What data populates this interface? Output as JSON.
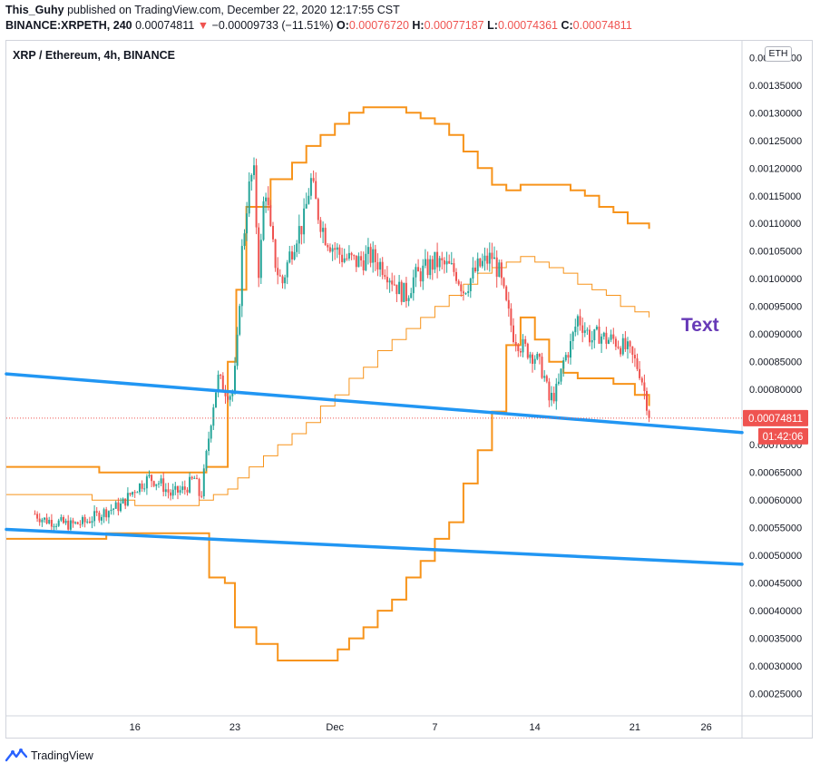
{
  "header": {
    "publisher": "This_Guhy",
    "published_text": "published on TradingView.com, December 22, 2020 12:17:55 CST",
    "symbol": "BINANCE:XRPETH, 240",
    "last_price": "0.00074811",
    "change": "−0.00009733 (−11.51%)",
    "o_label": "O:",
    "o_value": "0.00076720",
    "h_label": "H:",
    "h_value": "0.00077187",
    "l_label": "L:",
    "l_value": "0.00074361",
    "c_label": "C:",
    "c_value": "0.00074811"
  },
  "plot_title": "XRP / Ethereum, 4h, BINANCE",
  "currency_badge": "ETH",
  "annotation_text": "Text",
  "price_label": "0.00074811",
  "countdown_label": "01:42:06",
  "footer_brand": "TradingView",
  "colors": {
    "up": "#26a69a",
    "down": "#ef5350",
    "orange": "#f7931a",
    "blue": "#2196f3",
    "annotation": "#673ab7"
  },
  "chart_data": {
    "type": "candlestick",
    "title": "XRP / Ethereum, 4h, BINANCE",
    "x_ticks": [
      {
        "label": "16",
        "day": 16
      },
      {
        "label": "23",
        "day": 23
      },
      {
        "label": "Dec",
        "day": 30
      },
      {
        "label": "7",
        "day": 37
      },
      {
        "label": "14",
        "day": 44
      },
      {
        "label": "21",
        "day": 51
      },
      {
        "label": "26",
        "day": 56
      }
    ],
    "y_ticks": [
      {
        "label": "0.00025000",
        "value": 0.00025
      },
      {
        "label": "0.00030000",
        "value": 0.0003
      },
      {
        "label": "0.00035000",
        "value": 0.00035
      },
      {
        "label": "0.00040000",
        "value": 0.0004
      },
      {
        "label": "0.00045000",
        "value": 0.00045
      },
      {
        "label": "0.00050000",
        "value": 0.0005
      },
      {
        "label": "0.00055000",
        "value": 0.00055
      },
      {
        "label": "0.00060000",
        "value": 0.0006
      },
      {
        "label": "0.00065000",
        "value": 0.00065
      },
      {
        "label": "0.00070000",
        "value": 0.0007
      },
      {
        "label": "0.00075000",
        "value": 0.00075
      },
      {
        "label": "0.00080000",
        "value": 0.0008
      },
      {
        "label": "0.00085000",
        "value": 0.00085
      },
      {
        "label": "0.00090000",
        "value": 0.0009
      },
      {
        "label": "0.00095000",
        "value": 0.00095
      },
      {
        "label": "0.00100000",
        "value": 0.001
      },
      {
        "label": "0.00105000",
        "value": 0.00105
      },
      {
        "label": "0.00110000",
        "value": 0.0011
      },
      {
        "label": "0.00115000",
        "value": 0.00115
      },
      {
        "label": "0.00120000",
        "value": 0.0012
      },
      {
        "label": "0.00125000",
        "value": 0.00125
      },
      {
        "label": "0.00130000",
        "value": 0.0013
      },
      {
        "label": "0.00135000",
        "value": 0.00135
      },
      {
        "label": "0.00140000",
        "value": 0.0014
      }
    ],
    "price_path": [
      [
        9.0,
        0.000575
      ],
      [
        9.6,
        0.000565
      ],
      [
        10.5,
        0.00056
      ],
      [
        11.5,
        0.000555
      ],
      [
        12.5,
        0.00056
      ],
      [
        13.2,
        0.00057
      ],
      [
        14.0,
        0.00058
      ],
      [
        15.0,
        0.00059
      ],
      [
        16.0,
        0.00062
      ],
      [
        17.0,
        0.00064
      ],
      [
        17.8,
        0.00063
      ],
      [
        18.5,
        0.00061
      ],
      [
        19.5,
        0.00062
      ],
      [
        20.2,
        0.00064
      ],
      [
        20.6,
        0.0006
      ],
      [
        21.0,
        0.00068
      ],
      [
        21.4,
        0.00076
      ],
      [
        21.8,
        0.00082
      ],
      [
        22.3,
        0.0008
      ],
      [
        22.8,
        0.00079
      ],
      [
        23.1,
        0.00085
      ],
      [
        23.5,
        0.00105
      ],
      [
        23.9,
        0.00115
      ],
      [
        24.3,
        0.0012
      ],
      [
        24.7,
        0.001
      ],
      [
        25.1,
        0.00118
      ],
      [
        25.5,
        0.00108
      ],
      [
        25.9,
        0.00102
      ],
      [
        26.3,
        0.00099
      ],
      [
        26.8,
        0.00104
      ],
      [
        27.3,
        0.00108
      ],
      [
        27.8,
        0.0011
      ],
      [
        28.3,
        0.00118
      ],
      [
        28.8,
        0.00112
      ],
      [
        29.3,
        0.00108
      ],
      [
        29.8,
        0.00106
      ],
      [
        30.5,
        0.00104
      ],
      [
        31.5,
        0.00103
      ],
      [
        32.5,
        0.00104
      ],
      [
        33.5,
        0.00102
      ],
      [
        34.5,
        0.00098
      ],
      [
        35.0,
        0.00097
      ],
      [
        35.5,
        0.001
      ],
      [
        36.0,
        0.00101
      ],
      [
        37.0,
        0.00103
      ],
      [
        38.0,
        0.00102
      ],
      [
        38.5,
        0.00101
      ],
      [
        39.0,
        0.00098
      ],
      [
        39.5,
        0.001
      ],
      [
        40.0,
        0.00102
      ],
      [
        40.5,
        0.00103
      ],
      [
        41.0,
        0.00104
      ],
      [
        41.5,
        0.00101
      ],
      [
        42.0,
        0.00095
      ],
      [
        42.5,
        0.0009
      ],
      [
        43.0,
        0.00088
      ],
      [
        43.5,
        0.00087
      ],
      [
        44.0,
        0.00086
      ],
      [
        44.6,
        0.00083
      ],
      [
        45.0,
        0.00078
      ],
      [
        45.6,
        0.0008
      ],
      [
        46.0,
        0.00085
      ],
      [
        46.5,
        0.00088
      ],
      [
        47.0,
        0.00093
      ],
      [
        47.5,
        0.00091
      ],
      [
        48.0,
        0.00089
      ],
      [
        48.5,
        0.0009
      ],
      [
        49.0,
        0.00089
      ],
      [
        49.5,
        0.00089
      ],
      [
        50.0,
        0.00088
      ],
      [
        50.5,
        0.00087
      ],
      [
        51.0,
        0.00085
      ],
      [
        51.4,
        0.00083
      ],
      [
        51.8,
        0.00078
      ],
      [
        52.1,
        0.00075
      ]
    ],
    "donchian_upper": [
      [
        7.0,
        0.00066
      ],
      [
        13.5,
        0.00065
      ],
      [
        15.5,
        0.00065
      ],
      [
        21.0,
        0.00066
      ],
      [
        22.5,
        0.00085
      ],
      [
        23.1,
        0.00098
      ],
      [
        23.8,
        0.00113
      ],
      [
        25.5,
        0.00118
      ],
      [
        27.0,
        0.00121
      ],
      [
        28.0,
        0.00124
      ],
      [
        29.0,
        0.00126
      ],
      [
        30.0,
        0.00128
      ],
      [
        31.0,
        0.0013
      ],
      [
        32.0,
        0.00131
      ],
      [
        33.5,
        0.00131
      ],
      [
        35.0,
        0.0013
      ],
      [
        36.0,
        0.00129
      ],
      [
        37.0,
        0.00128
      ],
      [
        38.0,
        0.00126
      ],
      [
        39.0,
        0.00123
      ],
      [
        40.0,
        0.0012
      ],
      [
        41.0,
        0.00117
      ],
      [
        42.0,
        0.00116
      ],
      [
        43.0,
        0.00117
      ],
      [
        44.0,
        0.00117
      ],
      [
        45.0,
        0.00117
      ],
      [
        46.5,
        0.00116
      ],
      [
        47.5,
        0.00115
      ],
      [
        48.5,
        0.00113
      ],
      [
        49.5,
        0.00112
      ],
      [
        50.5,
        0.0011
      ],
      [
        51.5,
        0.0011
      ],
      [
        52.0,
        0.00109
      ]
    ],
    "donchian_middle": [
      [
        7.0,
        0.00061
      ],
      [
        13.0,
        0.0006
      ],
      [
        16.0,
        0.00059
      ],
      [
        20.5,
        0.0006
      ],
      [
        21.5,
        0.00061
      ],
      [
        22.5,
        0.00062
      ],
      [
        23.2,
        0.00064
      ],
      [
        24.0,
        0.00066
      ],
      [
        25.0,
        0.00068
      ],
      [
        26.0,
        0.0007
      ],
      [
        27.0,
        0.00072
      ],
      [
        28.0,
        0.00074
      ],
      [
        29.0,
        0.00077
      ],
      [
        30.0,
        0.00079
      ],
      [
        31.0,
        0.00082
      ],
      [
        32.0,
        0.00084
      ],
      [
        33.0,
        0.00087
      ],
      [
        34.0,
        0.00089
      ],
      [
        35.0,
        0.00091
      ],
      [
        36.0,
        0.00093
      ],
      [
        37.0,
        0.00095
      ],
      [
        38.0,
        0.00097
      ],
      [
        39.0,
        0.00099
      ],
      [
        40.0,
        0.00101
      ],
      [
        41.0,
        0.00102
      ],
      [
        42.0,
        0.00103
      ],
      [
        43.0,
        0.00104
      ],
      [
        44.0,
        0.00103
      ],
      [
        45.0,
        0.00102
      ],
      [
        46.0,
        0.00101
      ],
      [
        47.0,
        0.00099
      ],
      [
        48.0,
        0.00098
      ],
      [
        49.0,
        0.00097
      ],
      [
        50.0,
        0.00095
      ],
      [
        51.0,
        0.00094
      ],
      [
        52.0,
        0.00093
      ]
    ],
    "donchian_lower": [
      [
        7.0,
        0.00053
      ],
      [
        14.0,
        0.00054
      ],
      [
        16.5,
        0.00054
      ],
      [
        20.5,
        0.00054
      ],
      [
        21.2,
        0.00046
      ],
      [
        22.3,
        0.00045
      ],
      [
        23.0,
        0.00037
      ],
      [
        24.5,
        0.00034
      ],
      [
        26.0,
        0.00031
      ],
      [
        27.5,
        0.00031
      ],
      [
        29.5,
        0.00031
      ],
      [
        30.2,
        0.00033
      ],
      [
        31.0,
        0.00035
      ],
      [
        32.0,
        0.00037
      ],
      [
        33.0,
        0.0004
      ],
      [
        34.0,
        0.00042
      ],
      [
        35.0,
        0.00046
      ],
      [
        36.0,
        0.00049
      ],
      [
        37.0,
        0.00053
      ],
      [
        38.0,
        0.00056
      ],
      [
        39.0,
        0.00063
      ],
      [
        40.0,
        0.00069
      ],
      [
        41.0,
        0.00076
      ],
      [
        42.0,
        0.00088
      ],
      [
        43.0,
        0.00093
      ],
      [
        44.0,
        0.00089
      ],
      [
        45.0,
        0.00085
      ],
      [
        46.0,
        0.00083
      ],
      [
        47.0,
        0.00082
      ],
      [
        48.0,
        0.00082
      ],
      [
        49.5,
        0.00081
      ],
      [
        51.0,
        0.00079
      ],
      [
        52.0,
        0.00077
      ]
    ],
    "trendlines": [
      {
        "from": [
          7.0,
          0.000828
        ],
        "to": [
          58.5,
          0.000722
        ]
      },
      {
        "from": [
          7.0,
          0.000547
        ],
        "to": [
          58.5,
          0.000484
        ]
      }
    ],
    "last_price": 0.00074811,
    "ylim": [
      0.00021,
      0.00143
    ],
    "xlim": [
      7.0,
      58.5
    ]
  }
}
